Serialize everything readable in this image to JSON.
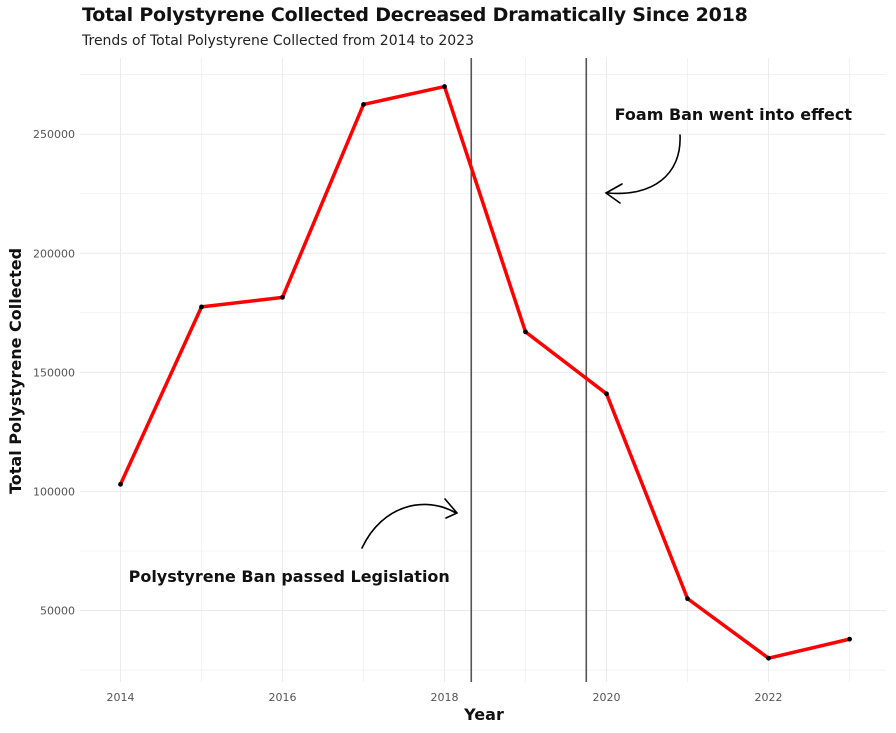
{
  "chart_data": {
    "type": "line",
    "title": "Total Polystyrene Collected Decreased Dramatically Since 2018",
    "subtitle": "Trends of Total Polystyrene Collected from 2014 to 2023",
    "xlabel": "Year",
    "ylabel": "Total Polystyrene Collected",
    "x": [
      2014,
      2015,
      2016,
      2017,
      2018,
      2019,
      2020,
      2021,
      2022,
      2023
    ],
    "series": [
      {
        "values": [
          103000,
          177500,
          181500,
          262500,
          270000,
          167000,
          141000,
          55000,
          30000,
          38000
        ]
      }
    ],
    "xlim": [
      2013.5,
      2023.45
    ],
    "ylim": [
      20000,
      282000
    ],
    "xticks": [
      2014,
      2016,
      2018,
      2020,
      2022
    ],
    "xtick_labels": [
      "2014",
      "2016",
      "2018",
      "2020",
      "2022"
    ],
    "yticks": [
      50000,
      100000,
      150000,
      200000,
      250000
    ],
    "ytick_labels": [
      "50000",
      "100000",
      "150000",
      "200000",
      "250000"
    ],
    "vlines": [
      2018.33,
      2019.75
    ],
    "annotations": [
      {
        "text": "Polystyrene Ban passed Legislation",
        "x": 2014.1,
        "y": 62000
      },
      {
        "text": "Foam Ban went into effect",
        "x": 2020.1,
        "y": 256000
      }
    ],
    "grid": true,
    "colors": {
      "line": "#ff0000",
      "point": "#000000",
      "vline": "#555555",
      "grid": "#ebebeb"
    }
  }
}
